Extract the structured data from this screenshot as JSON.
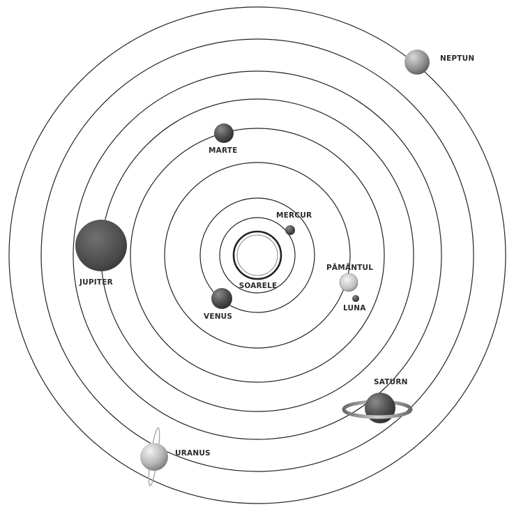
{
  "labels": {
    "sun": "SOARELE",
    "mercury": "MERCUR",
    "venus": "VENUS",
    "earth": "PĂMÂNTUL",
    "moon": "LUNA",
    "mars": "MARTE",
    "jupiter": "JUPITER",
    "saturn": "SATURN",
    "uranus": "URANUS",
    "neptune": "NEPTUN"
  },
  "colors": {
    "orbit": "#222222",
    "dark_planet": "#4d4d4d",
    "light_planet": "#bdbdbd"
  }
}
